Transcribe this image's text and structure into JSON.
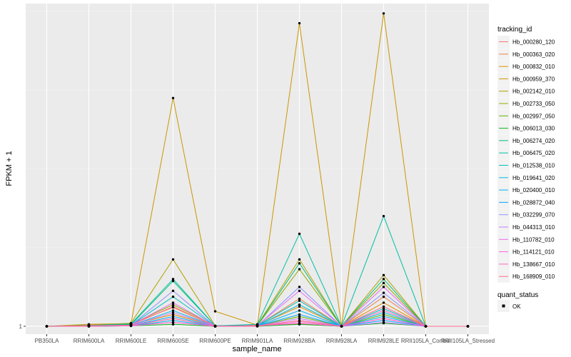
{
  "chart_data": {
    "type": "line",
    "xlabel": "sample_name",
    "ylabel": "FPKM + 1",
    "y_tick_labels": [
      "1"
    ],
    "categories": [
      "PB350LA",
      "RRIM600LA",
      "RRIM600LE",
      "RRIM600SE",
      "RRIM600PE",
      "RRIM901LA",
      "RRIM928BA",
      "RRIM928LA",
      "RRIM928LE",
      "RRII105LA_Control",
      "RRII105LA_Stressed"
    ],
    "legend_title": "tracking_id",
    "quant_legend_title": "quant_status",
    "quant_legend_item": "OK",
    "colors": [
      "#F8766D",
      "#EE8042",
      "#DF8C00",
      "#CB9600",
      "#B19F00",
      "#93A900",
      "#6BB100",
      "#0BB81B",
      "#00BE76",
      "#00C0A4",
      "#00BFC4",
      "#00BBDE",
      "#00B3F2",
      "#00A5FF",
      "#8D93FF",
      "#C87CFF",
      "#E76BF3",
      "#FA62DB",
      "#FF65C1",
      "#FF6C90"
    ],
    "series": [
      {
        "name": "Hb_000280_120",
        "values": [
          1,
          1.01,
          1.02,
          1.1,
          1.0,
          1.01,
          1.06,
          1.0,
          1.2,
          1.0,
          1.0
        ]
      },
      {
        "name": "Hb_000363_020",
        "values": [
          1,
          1.04,
          1.06,
          1.48,
          1.0,
          1.02,
          1.7,
          1.0,
          1.75,
          1.0,
          1.0
        ]
      },
      {
        "name": "Hb_000832_010",
        "values": [
          1,
          1.02,
          1.04,
          1.3,
          1.01,
          1.02,
          1.5,
          1.0,
          1.6,
          1.0,
          1.0
        ]
      },
      {
        "name": "Hb_000959_370",
        "values": [
          1,
          1.05,
          1.07,
          6.8,
          1.38,
          1.03,
          8.7,
          1.0,
          8.95,
          1.0,
          1.0
        ]
      },
      {
        "name": "Hb_002142_010",
        "values": [
          1,
          1.02,
          1.08,
          2.7,
          1.01,
          1.03,
          2.7,
          1.0,
          2.3,
          1.0,
          1.0
        ]
      },
      {
        "name": "Hb_002733_050",
        "values": [
          1,
          1.01,
          1.05,
          1.55,
          1.01,
          1.02,
          2.45,
          1.0,
          2.1,
          1.0,
          1.0
        ]
      },
      {
        "name": "Hb_002997_050",
        "values": [
          1,
          1.01,
          1.02,
          1.2,
          1.0,
          1.01,
          1.25,
          1.0,
          1.3,
          1.0,
          1.0
        ]
      },
      {
        "name": "Hb_006013_030",
        "values": [
          1,
          1.0,
          1.01,
          1.05,
          1.0,
          1.0,
          1.05,
          1.0,
          1.08,
          1.0,
          1.0
        ]
      },
      {
        "name": "Hb_006274_020",
        "values": [
          1,
          1.01,
          1.04,
          2.15,
          1.01,
          1.02,
          2.6,
          1.0,
          2.2,
          1.0,
          1.0
        ]
      },
      {
        "name": "Hb_006475_020",
        "values": [
          1,
          1.02,
          1.06,
          2.2,
          1.01,
          1.05,
          3.35,
          1.0,
          3.8,
          1.0,
          1.0
        ]
      },
      {
        "name": "Hb_012538_010",
        "values": [
          1,
          1.01,
          1.03,
          1.75,
          1.0,
          1.02,
          1.65,
          1.0,
          1.45,
          1.0,
          1.0
        ]
      },
      {
        "name": "Hb_019641_020",
        "values": [
          1,
          1.0,
          1.02,
          1.4,
          1.0,
          1.01,
          1.55,
          1.0,
          1.35,
          1.0,
          1.0
        ]
      },
      {
        "name": "Hb_020400_010",
        "values": [
          1,
          1.0,
          1.01,
          1.15,
          1.0,
          1.01,
          1.4,
          1.0,
          1.25,
          1.0,
          1.0
        ]
      },
      {
        "name": "Hb_028872_040",
        "values": [
          1,
          1.0,
          1.02,
          1.25,
          1.0,
          1.01,
          1.3,
          1.0,
          1.15,
          1.0,
          1.0
        ]
      },
      {
        "name": "Hb_032299_070",
        "values": [
          1,
          1.01,
          1.03,
          1.9,
          1.0,
          1.01,
          2.0,
          1.0,
          1.85,
          1.0,
          1.0
        ]
      },
      {
        "name": "Hb_044313_010",
        "values": [
          1,
          1.0,
          1.02,
          1.35,
          1.0,
          1.01,
          1.2,
          1.0,
          1.1,
          1.0,
          1.0
        ]
      },
      {
        "name": "Hb_110782_010",
        "values": [
          1,
          1.01,
          1.03,
          1.6,
          1.0,
          1.02,
          1.9,
          1.0,
          2.0,
          1.0,
          1.0
        ]
      },
      {
        "name": "Hb_114121_010",
        "values": [
          1,
          1.0,
          1.01,
          1.1,
          1.0,
          1.01,
          1.08,
          1.0,
          1.2,
          1.0,
          1.0
        ]
      },
      {
        "name": "Hb_138667_010",
        "values": [
          1,
          1.0,
          1.02,
          1.2,
          1.0,
          1.0,
          1.12,
          1.0,
          1.4,
          1.0,
          1.0
        ]
      },
      {
        "name": "Hb_168909_010",
        "values": [
          1,
          1.01,
          1.03,
          1.5,
          1.0,
          1.01,
          1.15,
          1.0,
          1.5,
          1.0,
          1.0
        ]
      }
    ],
    "ylim": [
      0.8,
      9.2
    ],
    "grid": true,
    "legend_position": "right"
  }
}
